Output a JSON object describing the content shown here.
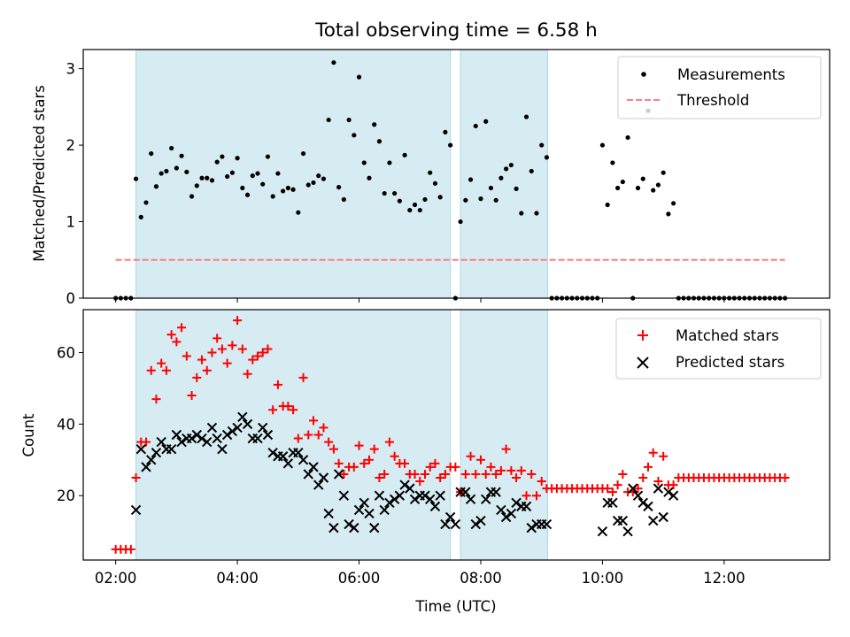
{
  "chart_data": [
    {
      "type": "scatter",
      "title": "Total observing time = 6.58 h",
      "xlabel": "",
      "ylabel": "Matched/Predicted stars",
      "xlim": [
        "01:28",
        "13:44"
      ],
      "ylim": [
        0,
        3.25
      ],
      "yticks": [
        0,
        1,
        2,
        3
      ],
      "shaded_intervals": [
        [
          "02:20",
          "07:30"
        ],
        [
          "07:40",
          "09:06"
        ]
      ],
      "legend": {
        "position": "upper right"
      },
      "series": [
        {
          "name": "Measurements",
          "marker": "dot",
          "color": "#000000",
          "x": [
            "02:00",
            "02:05",
            "02:10",
            "02:15",
            "02:20",
            "02:25",
            "02:30",
            "02:35",
            "02:40",
            "02:45",
            "02:50",
            "02:55",
            "03:00",
            "03:05",
            "03:10",
            "03:15",
            "03:20",
            "03:25",
            "03:30",
            "03:35",
            "03:40",
            "03:45",
            "03:50",
            "03:55",
            "04:00",
            "04:05",
            "04:10",
            "04:15",
            "04:20",
            "04:25",
            "04:30",
            "04:35",
            "04:40",
            "04:45",
            "04:50",
            "04:55",
            "05:00",
            "05:05",
            "05:10",
            "05:15",
            "05:20",
            "05:25",
            "05:30",
            "05:35",
            "05:40",
            "05:45",
            "05:50",
            "05:55",
            "06:00",
            "06:05",
            "06:10",
            "06:15",
            "06:20",
            "06:25",
            "06:30",
            "06:35",
            "06:40",
            "06:45",
            "06:50",
            "06:55",
            "07:00",
            "07:05",
            "07:10",
            "07:15",
            "07:20",
            "07:25",
            "07:30",
            "07:35",
            "07:40",
            "07:45",
            "07:50",
            "07:55",
            "08:00",
            "08:05",
            "08:10",
            "08:15",
            "08:20",
            "08:25",
            "08:30",
            "08:35",
            "08:40",
            "08:45",
            "08:50",
            "08:55",
            "09:00",
            "09:05",
            "09:10",
            "09:15",
            "09:20",
            "09:25",
            "09:30",
            "09:35",
            "09:40",
            "09:45",
            "09:50",
            "09:55",
            "10:00",
            "10:05",
            "10:10",
            "10:15",
            "10:20",
            "10:25",
            "10:30",
            "10:35",
            "10:40",
            "10:45",
            "10:50",
            "10:55",
            "11:00",
            "11:05",
            "11:10",
            "11:15",
            "11:20",
            "11:25",
            "11:30",
            "11:35",
            "11:40",
            "11:45",
            "11:50",
            "11:55",
            "12:00",
            "12:05",
            "12:10",
            "12:15",
            "12:20",
            "12:25",
            "12:30",
            "12:35",
            "12:40",
            "12:45",
            "12:50",
            "12:55",
            "13:00"
          ],
          "y": [
            0,
            0,
            0,
            0,
            1.56,
            1.06,
            1.25,
            1.89,
            1.46,
            1.63,
            1.66,
            1.96,
            1.7,
            1.86,
            1.65,
            1.33,
            1.47,
            1.57,
            1.57,
            1.54,
            1.78,
            1.85,
            1.59,
            1.64,
            1.83,
            1.44,
            1.35,
            1.6,
            1.63,
            1.49,
            1.85,
            1.33,
            1.63,
            1.4,
            1.44,
            1.42,
            1.12,
            1.89,
            1.48,
            1.51,
            1.6,
            1.56,
            2.33,
            3.08,
            1.45,
            1.29,
            2.33,
            2.13,
            2.89,
            1.77,
            1.57,
            2.27,
            2.05,
            1.37,
            1.77,
            1.37,
            1.27,
            1.87,
            1.15,
            1.22,
            1.15,
            1.29,
            1.64,
            1.5,
            1.32,
            2.17,
            2.0,
            0,
            1.0,
            1.28,
            1.55,
            2.25,
            1.3,
            2.31,
            1.44,
            1.28,
            1.57,
            1.69,
            1.74,
            1.43,
            1.11,
            2.37,
            1.66,
            1.11,
            2.0,
            1.84,
            0,
            0,
            0,
            0,
            0,
            0,
            0,
            0,
            0,
            0,
            2.0,
            1.22,
            1.77,
            1.44,
            1.52,
            2.1,
            0,
            1.44,
            1.56,
            2.45,
            1.41,
            1.48,
            1.64,
            1.1,
            1.24,
            0,
            0,
            0,
            0,
            0,
            0,
            0,
            0,
            0,
            0,
            0,
            0,
            0,
            0,
            0,
            0,
            0,
            0,
            0,
            0,
            0,
            0
          ]
        },
        {
          "name": "Threshold",
          "line": "dashed",
          "color": "#ff7f7f",
          "x": [
            "02:00",
            "13:00"
          ],
          "y": [
            0.5,
            0.5
          ]
        }
      ]
    },
    {
      "type": "scatter",
      "title": "",
      "xlabel": "Time (UTC)",
      "ylabel": "Count",
      "xlim": [
        "01:28",
        "13:44"
      ],
      "ylim": [
        2,
        72
      ],
      "xticks": [
        "02:00",
        "04:00",
        "06:00",
        "08:00",
        "10:00",
        "12:00"
      ],
      "yticks": [
        20,
        40,
        60
      ],
      "shaded_intervals": [
        [
          "02:20",
          "07:30"
        ],
        [
          "07:40",
          "09:06"
        ]
      ],
      "legend": {
        "position": "upper right"
      },
      "series": [
        {
          "name": "Matched stars",
          "marker": "plus",
          "color": "#ff0000",
          "x": [
            "02:00",
            "02:05",
            "02:10",
            "02:15",
            "02:20",
            "02:25",
            "02:30",
            "02:35",
            "02:40",
            "02:45",
            "02:50",
            "02:55",
            "03:00",
            "03:05",
            "03:10",
            "03:15",
            "03:20",
            "03:25",
            "03:30",
            "03:35",
            "03:40",
            "03:45",
            "03:50",
            "03:55",
            "04:00",
            "04:05",
            "04:10",
            "04:15",
            "04:20",
            "04:25",
            "04:30",
            "04:35",
            "04:40",
            "04:45",
            "04:50",
            "04:55",
            "05:00",
            "05:05",
            "05:10",
            "05:15",
            "05:20",
            "05:25",
            "05:30",
            "05:35",
            "05:40",
            "05:45",
            "05:50",
            "05:55",
            "06:00",
            "06:05",
            "06:10",
            "06:15",
            "06:20",
            "06:25",
            "06:30",
            "06:35",
            "06:40",
            "06:45",
            "06:50",
            "06:55",
            "07:00",
            "07:05",
            "07:10",
            "07:15",
            "07:20",
            "07:25",
            "07:30",
            "07:35",
            "07:40",
            "07:45",
            "07:50",
            "07:55",
            "08:00",
            "08:05",
            "08:10",
            "08:15",
            "08:20",
            "08:25",
            "08:30",
            "08:35",
            "08:40",
            "08:45",
            "08:50",
            "08:55",
            "09:00",
            "09:05",
            "09:10",
            "09:15",
            "09:20",
            "09:25",
            "09:30",
            "09:35",
            "09:40",
            "09:45",
            "09:50",
            "09:55",
            "10:00",
            "10:05",
            "10:10",
            "10:15",
            "10:20",
            "10:25",
            "10:30",
            "10:35",
            "10:40",
            "10:45",
            "10:50",
            "10:55",
            "11:00",
            "11:05",
            "11:10",
            "11:15",
            "11:20",
            "11:25",
            "11:30",
            "11:35",
            "11:40",
            "11:45",
            "11:50",
            "11:55",
            "12:00",
            "12:05",
            "12:10",
            "12:15",
            "12:20",
            "12:25",
            "12:30",
            "12:35",
            "12:40",
            "12:45",
            "12:50",
            "12:55",
            "13:00"
          ],
          "y": [
            5,
            5,
            5,
            5,
            25,
            35,
            35,
            55,
            47,
            57,
            55,
            65,
            63,
            67,
            59,
            48,
            53,
            58,
            55,
            60,
            64,
            61,
            57,
            62,
            69,
            61,
            54,
            58,
            59,
            60,
            61,
            44,
            51,
            45,
            45,
            44,
            36,
            53,
            37,
            41,
            37,
            39,
            35,
            33,
            29,
            26,
            28,
            28,
            34,
            29,
            30,
            33,
            25,
            26,
            35,
            31,
            29,
            29,
            26,
            26,
            24,
            26,
            28,
            29,
            25,
            26,
            28,
            28,
            21,
            26,
            31,
            26,
            30,
            26,
            28,
            26,
            27,
            33,
            27,
            25,
            27,
            20,
            26,
            20,
            24,
            22,
            22,
            22,
            22,
            22,
            22,
            22,
            22,
            22,
            22,
            22,
            22,
            22,
            21,
            23,
            26,
            21,
            21,
            22,
            25,
            28,
            32,
            24,
            31,
            23,
            23,
            25,
            25,
            25,
            25,
            25,
            25,
            25,
            25,
            25,
            25,
            25,
            25,
            25,
            25,
            25,
            25,
            25,
            25,
            25,
            25,
            25,
            25
          ]
        },
        {
          "name": "Predicted stars",
          "marker": "x",
          "color": "#000000",
          "x": [
            "02:20",
            "02:25",
            "02:30",
            "02:35",
            "02:40",
            "02:45",
            "02:50",
            "02:55",
            "03:00",
            "03:05",
            "03:10",
            "03:15",
            "03:20",
            "03:25",
            "03:30",
            "03:35",
            "03:40",
            "03:45",
            "03:50",
            "03:55",
            "04:00",
            "04:05",
            "04:10",
            "04:15",
            "04:20",
            "04:25",
            "04:30",
            "04:35",
            "04:40",
            "04:45",
            "04:50",
            "04:55",
            "05:00",
            "05:05",
            "05:10",
            "05:15",
            "05:20",
            "05:25",
            "05:30",
            "05:35",
            "05:40",
            "05:45",
            "05:50",
            "05:55",
            "06:00",
            "06:05",
            "06:10",
            "06:15",
            "06:20",
            "06:25",
            "06:30",
            "06:35",
            "06:40",
            "06:45",
            "06:50",
            "06:55",
            "07:00",
            "07:05",
            "07:10",
            "07:15",
            "07:20",
            "07:25",
            "07:30",
            "07:35",
            "07:40",
            "07:45",
            "07:50",
            "07:55",
            "08:00",
            "08:05",
            "08:10",
            "08:15",
            "08:20",
            "08:25",
            "08:30",
            "08:35",
            "08:40",
            "08:45",
            "08:50",
            "08:55",
            "09:00",
            "09:05",
            "10:00",
            "10:05",
            "10:10",
            "10:15",
            "10:20",
            "10:25",
            "10:30",
            "10:35",
            "10:40",
            "10:45",
            "10:50",
            "10:55",
            "11:00",
            "11:05",
            "11:10"
          ],
          "y": [
            16,
            33,
            28,
            30,
            32,
            35,
            33,
            33,
            37,
            35,
            36,
            36,
            37,
            36,
            35,
            39,
            36,
            33,
            37,
            38,
            39,
            42,
            40,
            36,
            36,
            39,
            37,
            32,
            31,
            31,
            29,
            32,
            32,
            30,
            26,
            28,
            23,
            25,
            15,
            11,
            26,
            20,
            12,
            11,
            16,
            18,
            15,
            11,
            20,
            16,
            18,
            19,
            20,
            23,
            22,
            19,
            20,
            20,
            19,
            17,
            20,
            12,
            14,
            12,
            21,
            21,
            19,
            12,
            13,
            19,
            21,
            21,
            16,
            14,
            15,
            18,
            17,
            17,
            11,
            12,
            12,
            12,
            10,
            18,
            18,
            13,
            13,
            10,
            22,
            20,
            18,
            17,
            13,
            22,
            14,
            21,
            20
          ]
        }
      ]
    }
  ]
}
